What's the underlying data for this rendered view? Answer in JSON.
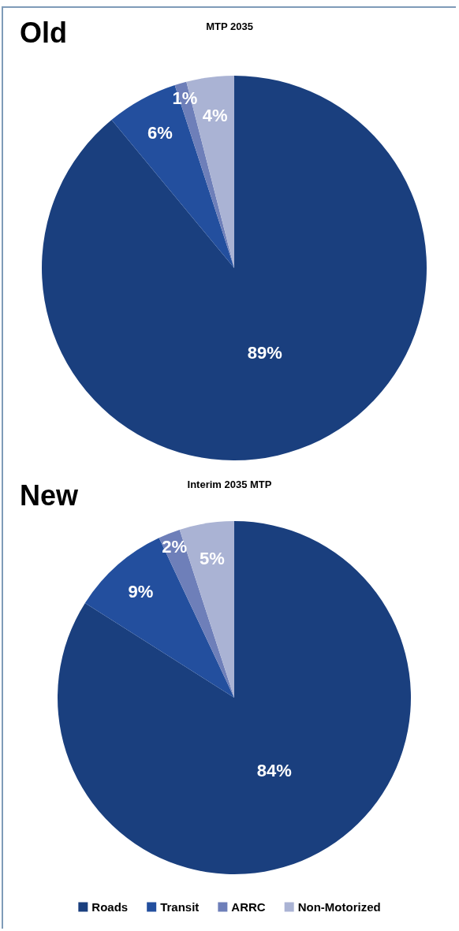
{
  "chart_data": [
    {
      "type": "pie",
      "title": "Old",
      "subtitle": "MTP 2035",
      "categories": [
        null,
        null,
        null,
        null
      ],
      "values": [
        89,
        6,
        1,
        4
      ],
      "value_labels": [
        "89%",
        "6%",
        "1%",
        "4%"
      ],
      "colors": [
        "#1a3f7e",
        "#234f9e",
        "#6e7fb9",
        "#aab3d4"
      ],
      "legend": false
    },
    {
      "type": "pie",
      "title": "New",
      "subtitle": "Interim 2035 MTP",
      "categories": [
        "Roads",
        "Transit",
        "ARRC",
        "Non-Motorized"
      ],
      "values": [
        84,
        9,
        2,
        5
      ],
      "value_labels": [
        "84%",
        "9%",
        "2%",
        "5%"
      ],
      "colors": [
        "#1a3f7e",
        "#234f9e",
        "#6e7fb9",
        "#aab3d4"
      ],
      "legend": "bottom"
    }
  ]
}
